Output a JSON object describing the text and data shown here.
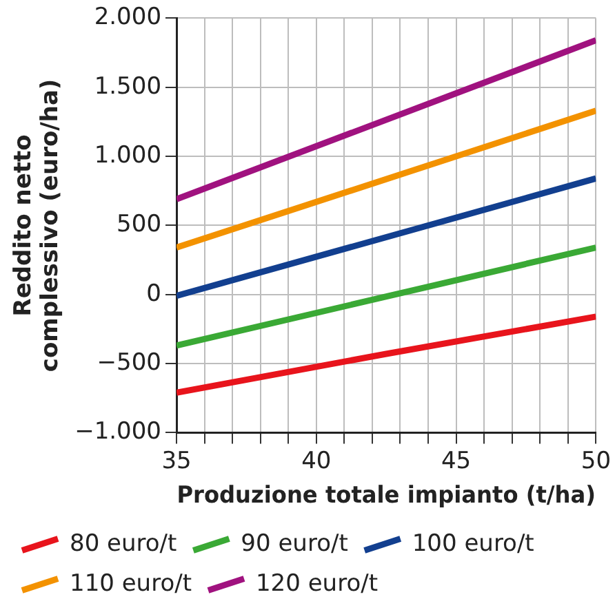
{
  "chart_data": {
    "type": "line",
    "xlabel": "Produzione totale impianto (t/ha)",
    "ylabel": "Reddito netto\ncomplessivo (euro/ha)",
    "xlim": [
      35,
      50
    ],
    "xticks": [
      35,
      {
        "value": 36,
        "label": null
      },
      {
        "value": 37,
        "label": null
      },
      {
        "value": 38,
        "label": null
      },
      {
        "value": 39,
        "label": null
      },
      40,
      {
        "value": 41,
        "label": null
      },
      {
        "value": 42,
        "label": null
      },
      {
        "value": 43,
        "label": null
      },
      {
        "value": 44,
        "label": null
      },
      45,
      {
        "value": 46,
        "label": null
      },
      {
        "value": 47,
        "label": null
      },
      {
        "value": 48,
        "label": null
      },
      {
        "value": 49,
        "label": null
      },
      50
    ],
    "ylim": [
      -1000,
      2000
    ],
    "yticks": [
      {
        "value": -1000,
        "label": "−1.000"
      },
      {
        "value": -500,
        "label": "−500"
      },
      0,
      500,
      {
        "value": 1000,
        "label": "1.000"
      },
      {
        "value": 1500,
        "label": "1.500"
      },
      {
        "value": 2000,
        "label": "2.000"
      }
    ],
    "grid": true,
    "legend": "bottom",
    "marker": "none",
    "line_style": "solid",
    "series": [
      {
        "name": "80 euro/t",
        "color": "#e8141c",
        "x": [
          35,
          42.5,
          50
        ],
        "values": [
          -710,
          -430,
          -160
        ]
      },
      {
        "name": "90 euro/t",
        "color": "#3aa935",
        "x": [
          35,
          50
        ],
        "values": [
          -370,
          340
        ]
      },
      {
        "name": "100 euro/t",
        "color": "#123f8f",
        "x": [
          35,
          50
        ],
        "values": [
          -10,
          840
        ]
      },
      {
        "name": "110 euro/t",
        "color": "#f39200",
        "x": [
          35,
          50
        ],
        "values": [
          340,
          1330
        ]
      },
      {
        "name": "120 euro/t",
        "color": "#a0127f",
        "x": [
          35,
          50
        ],
        "values": [
          690,
          1840
        ]
      }
    ]
  }
}
